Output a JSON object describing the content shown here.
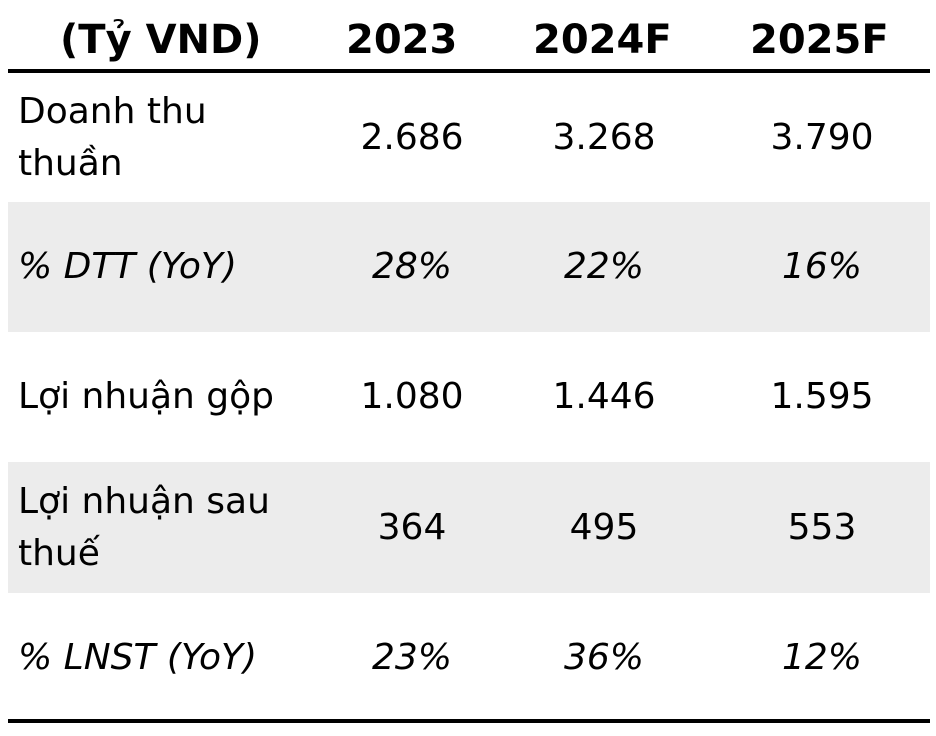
{
  "header": {
    "unit": "(Tỷ VND)",
    "years": [
      "2023",
      "2024F",
      "2025F"
    ]
  },
  "rows": [
    {
      "label": "Doanh thu thuần",
      "values": [
        "2.686",
        "3.268",
        "3.790"
      ],
      "italic": false,
      "shaded": false
    },
    {
      "label": "% DTT (YoY)",
      "values": [
        "28%",
        "22%",
        "16%"
      ],
      "italic": true,
      "shaded": true
    },
    {
      "label": "Lợi nhuận gộp",
      "values": [
        "1.080",
        "1.446",
        "1.595"
      ],
      "italic": false,
      "shaded": false
    },
    {
      "label": "Lợi nhuận sau thuế",
      "values": [
        "364",
        "495",
        "553"
      ],
      "italic": false,
      "shaded": true
    },
    {
      "label": "% LNST (YoY)",
      "values": [
        "23%",
        "36%",
        "12%"
      ],
      "italic": true,
      "shaded": false
    }
  ],
  "colors": {
    "shaded_row": "#ececec",
    "rule": "#000000"
  }
}
